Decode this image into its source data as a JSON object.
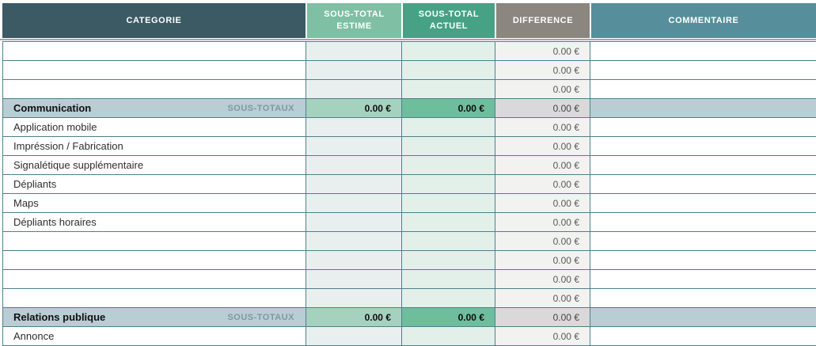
{
  "colors": {
    "header_categorie_bg": "#3B5A64",
    "header_estime_bg": "#7FBFA4",
    "header_actuel_bg": "#47A285",
    "header_difference_bg": "#8B8680",
    "header_commentaire_bg": "#578E9B",
    "header_text": "#FFFFFF",
    "grid_border": "#4E808D",
    "freeze_divider": "#A6A6A6",
    "cell_estime_bg": "#E9EFEF",
    "cell_actuel_bg": "#E3F0EA",
    "cell_difference_bg": "#F2F2F0",
    "subtotal_row_bg": "#B9CDD4",
    "subtotal_estime_bg": "#A5D2BE",
    "subtotal_actuel_bg": "#6EBE9D",
    "subtotal_difference_bg": "#D9D9D9",
    "subtotal_label_color": "#7E99A4",
    "value_text": "#5A5A5A",
    "item_text": "#2E2E2E"
  },
  "header": {
    "categorie": "CATEGORIE",
    "estime_line1": "SOUS-TOTAL",
    "estime_line2": "ESTIME",
    "actuel_line1": "SOUS-TOTAL",
    "actuel_line2": "ACTUEL",
    "difference": "DIFFERENCE",
    "commentaire": "COMMENTAIRE"
  },
  "table": {
    "rows": [
      {
        "type": "blank",
        "categorie": "",
        "tag": "",
        "estime": "",
        "actuel": "",
        "difference": "0.00 €",
        "commentaire": ""
      },
      {
        "type": "blank",
        "categorie": "",
        "tag": "",
        "estime": "",
        "actuel": "",
        "difference": "0.00 €",
        "commentaire": ""
      },
      {
        "type": "blank",
        "categorie": "",
        "tag": "",
        "estime": "",
        "actuel": "",
        "difference": "0.00 €",
        "commentaire": ""
      },
      {
        "type": "subtotal",
        "categorie": "Communication",
        "tag": "SOUS-TOTAUX",
        "estime": "0.00 €",
        "actuel": "0.00 €",
        "difference": "0.00 €",
        "commentaire": ""
      },
      {
        "type": "item",
        "categorie": "Application mobile",
        "tag": "",
        "estime": "",
        "actuel": "",
        "difference": "0.00 €",
        "commentaire": ""
      },
      {
        "type": "item",
        "categorie": "Impréssion / Fabrication",
        "tag": "",
        "estime": "",
        "actuel": "",
        "difference": "0.00 €",
        "commentaire": ""
      },
      {
        "type": "item",
        "categorie": "Signalétique supplémentaire",
        "tag": "",
        "estime": "",
        "actuel": "",
        "difference": "0.00 €",
        "commentaire": ""
      },
      {
        "type": "item",
        "categorie": "Dépliants",
        "tag": "",
        "estime": "",
        "actuel": "",
        "difference": "0.00 €",
        "commentaire": ""
      },
      {
        "type": "item",
        "categorie": "Maps",
        "tag": "",
        "estime": "",
        "actuel": "",
        "difference": "0.00 €",
        "commentaire": ""
      },
      {
        "type": "item",
        "categorie": "Dépliants horaires",
        "tag": "",
        "estime": "",
        "actuel": "",
        "difference": "0.00 €",
        "commentaire": ""
      },
      {
        "type": "blank",
        "categorie": "",
        "tag": "",
        "estime": "",
        "actuel": "",
        "difference": "0.00 €",
        "commentaire": ""
      },
      {
        "type": "blank",
        "categorie": "",
        "tag": "",
        "estime": "",
        "actuel": "",
        "difference": "0.00 €",
        "commentaire": ""
      },
      {
        "type": "blank",
        "categorie": "",
        "tag": "",
        "estime": "",
        "actuel": "",
        "difference": "0.00 €",
        "commentaire": ""
      },
      {
        "type": "blank",
        "categorie": "",
        "tag": "",
        "estime": "",
        "actuel": "",
        "difference": "0.00 €",
        "commentaire": ""
      },
      {
        "type": "subtotal",
        "categorie": "Relations publique",
        "tag": "SOUS-TOTAUX",
        "estime": "0.00 €",
        "actuel": "0.00 €",
        "difference": "0.00 €",
        "commentaire": ""
      },
      {
        "type": "item",
        "categorie": "Annonce",
        "tag": "",
        "estime": "",
        "actuel": "",
        "difference": "0.00 €",
        "commentaire": ""
      }
    ]
  }
}
